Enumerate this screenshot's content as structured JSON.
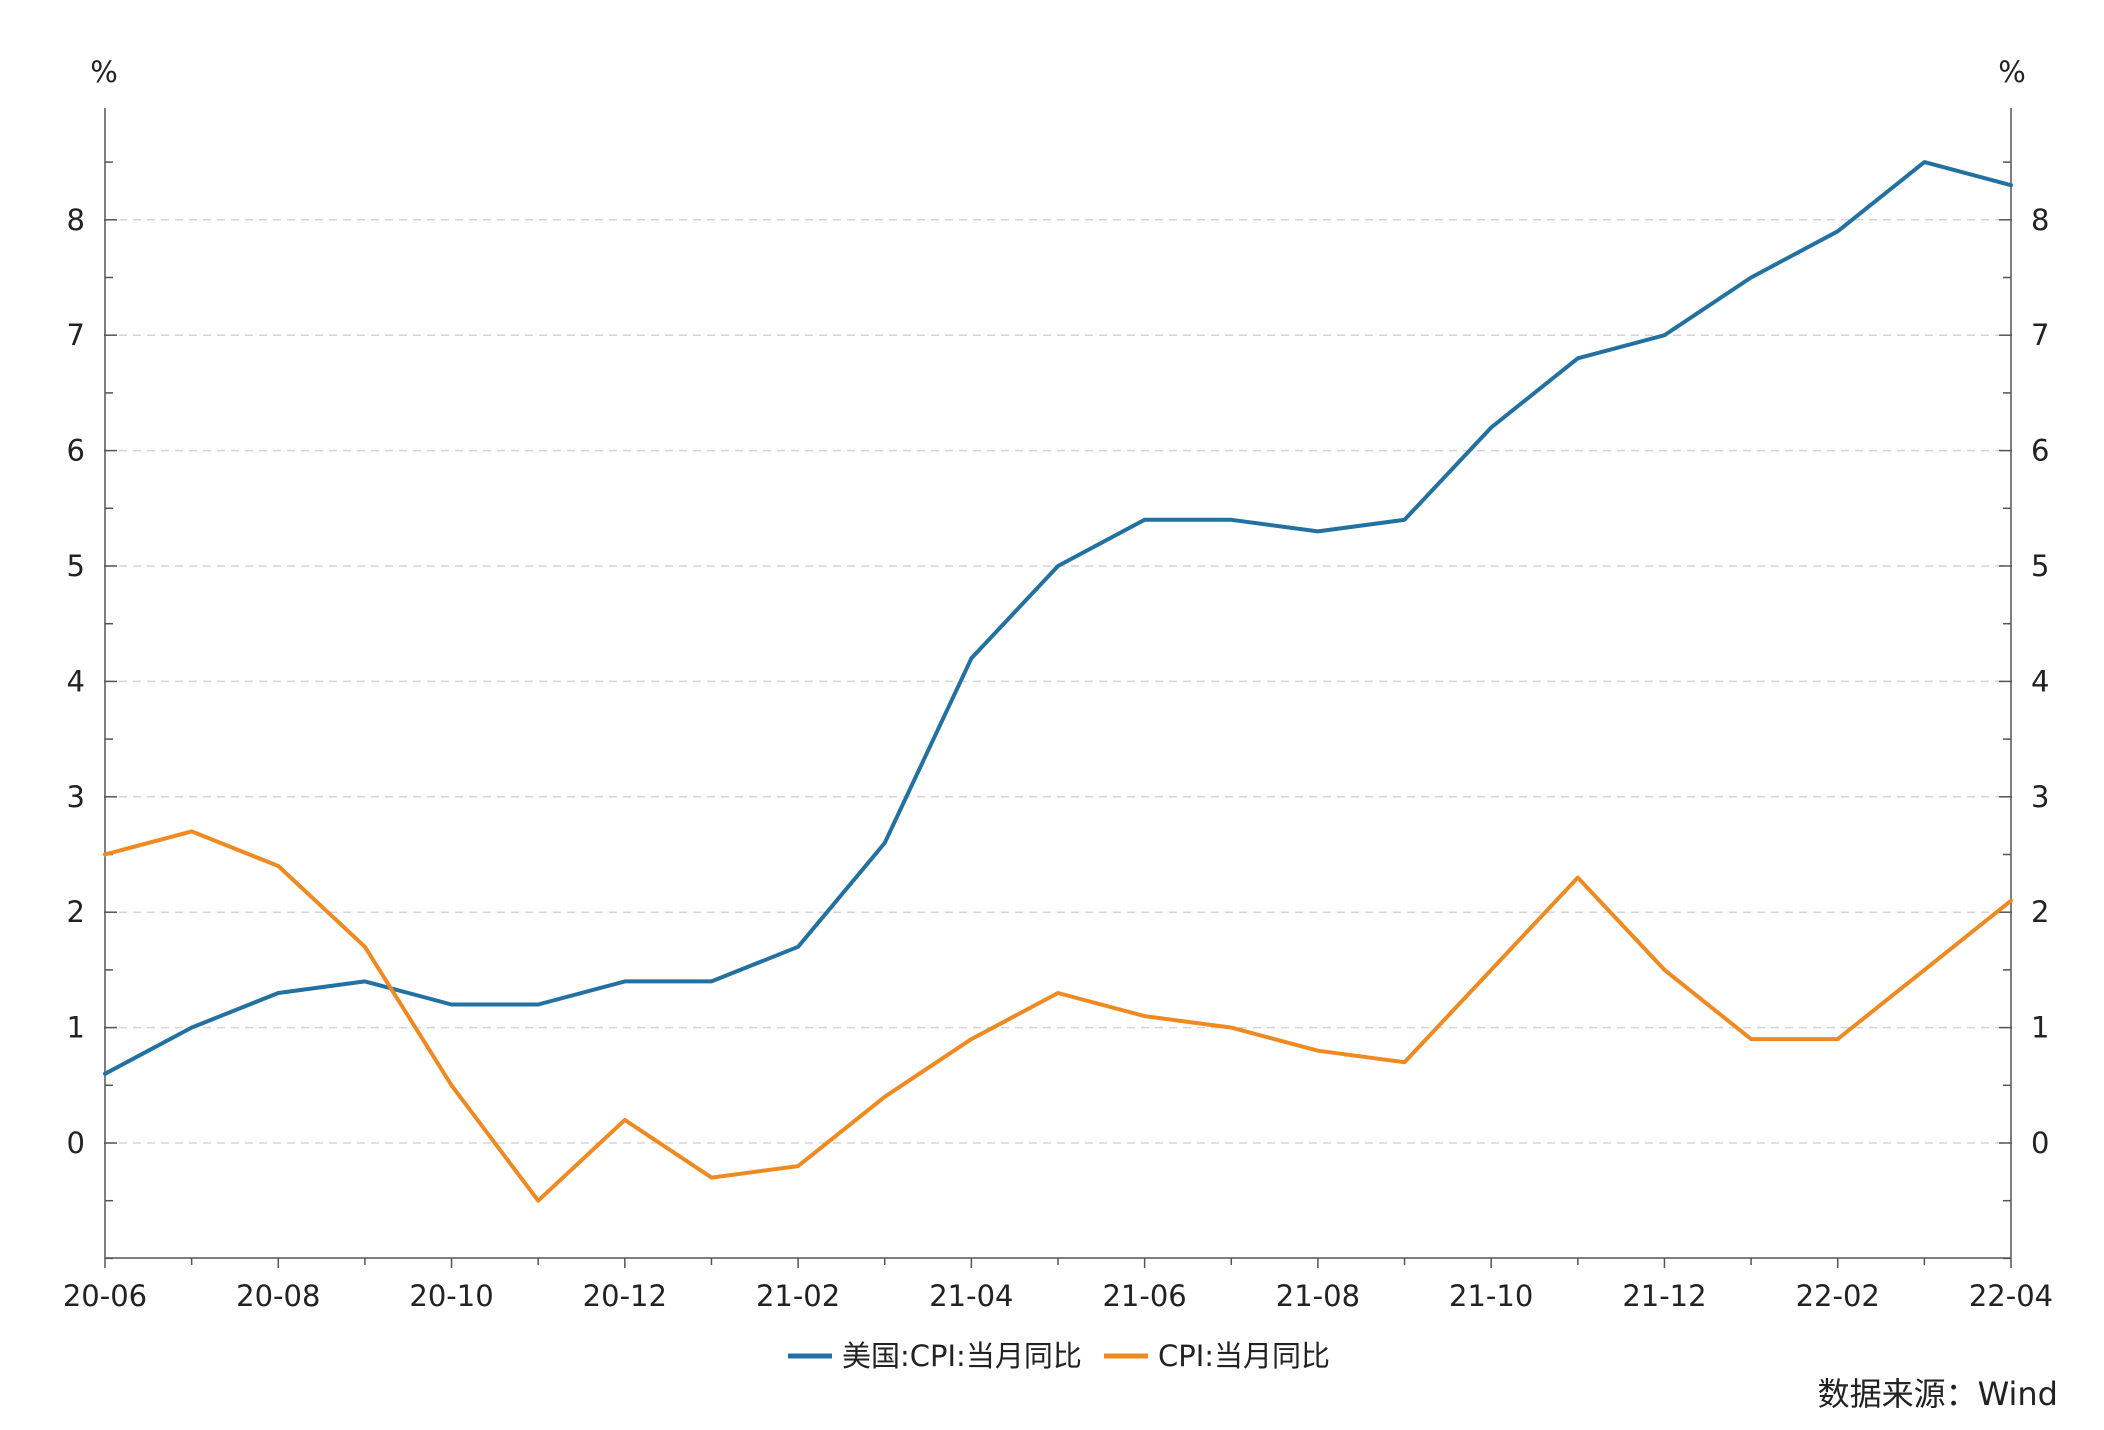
{
  "chart_data": {
    "type": "line",
    "left_unit": "%",
    "right_unit": "%",
    "x": [
      "20-06",
      "20-07",
      "20-08",
      "20-09",
      "20-10",
      "20-11",
      "20-12",
      "21-01",
      "21-02",
      "21-03",
      "21-04",
      "21-05",
      "21-06",
      "21-07",
      "21-08",
      "21-09",
      "21-10",
      "21-11",
      "21-12",
      "22-01",
      "22-02",
      "22-03",
      "22-04"
    ],
    "x_tick_labels": [
      "20-06",
      "20-08",
      "20-10",
      "20-12",
      "21-02",
      "21-04",
      "21-06",
      "21-08",
      "21-10",
      "21-12",
      "22-02",
      "22-04"
    ],
    "y_tick_labels": [
      "0",
      "1",
      "2",
      "3",
      "4",
      "5",
      "6",
      "7",
      "8"
    ],
    "ylim": [
      -1,
      9
    ],
    "grid": true,
    "legend_position": "bottom-center",
    "series": [
      {
        "name": "美国:CPI:当月同比",
        "color": "#2271a0",
        "values": [
          0.6,
          1.0,
          1.3,
          1.4,
          1.2,
          1.2,
          1.4,
          1.4,
          1.7,
          2.6,
          4.2,
          5.0,
          5.4,
          5.4,
          5.3,
          5.4,
          6.2,
          6.8,
          7.0,
          7.5,
          7.9,
          8.5,
          8.3
        ]
      },
      {
        "name": "CPI:当月同比",
        "color": "#ef8a21",
        "values": [
          2.5,
          2.7,
          2.4,
          1.7,
          0.5,
          -0.5,
          0.2,
          -0.3,
          -0.2,
          0.4,
          0.9,
          1.3,
          1.1,
          1.0,
          0.8,
          0.7,
          1.5,
          2.3,
          1.5,
          0.9,
          0.9,
          1.5,
          2.1
        ]
      }
    ]
  },
  "source": {
    "text": "数据来源：Wind",
    "color": "#e0201b"
  }
}
